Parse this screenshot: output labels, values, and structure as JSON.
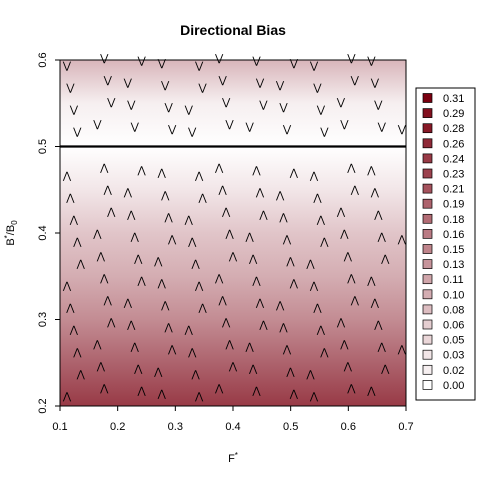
{
  "chart_data": {
    "type": "heatmap",
    "title": "Directional Bias",
    "xlabel": "F*",
    "ylabel": "B*/B0",
    "xlim": [
      0.1,
      0.7
    ],
    "ylim": [
      0.2,
      0.6
    ],
    "x_ticks": [
      "0.1",
      "0.2",
      "0.3",
      "0.4",
      "0.5",
      "0.6",
      "0.7"
    ],
    "y_ticks": [
      "0.2",
      "0.3",
      "0.4",
      "0.5",
      "0.6"
    ],
    "reference_line": {
      "y": 0.5,
      "color": "#000000"
    },
    "colormap": {
      "low": "#ffffff",
      "high": "#7a0010"
    },
    "bias_profile": {
      "y": [
        0.2,
        0.25,
        0.3,
        0.35,
        0.4,
        0.45,
        0.5,
        0.55,
        0.6
      ],
      "value": [
        0.24,
        0.19,
        0.14,
        0.1,
        0.07,
        0.03,
        0.0,
        0.02,
        0.09
      ]
    },
    "arrows": {
      "glyph": "⋀",
      "below_line_direction": "up",
      "above_line_direction": "down"
    },
    "legend": {
      "placement": "right",
      "entries": [
        "0.31",
        "0.29",
        "0.28",
        "0.26",
        "0.24",
        "0.23",
        "0.21",
        "0.19",
        "0.18",
        "0.16",
        "0.15",
        "0.13",
        "0.11",
        "0.10",
        "0.08",
        "0.06",
        "0.05",
        "0.03",
        "0.02",
        "0.00"
      ]
    }
  }
}
